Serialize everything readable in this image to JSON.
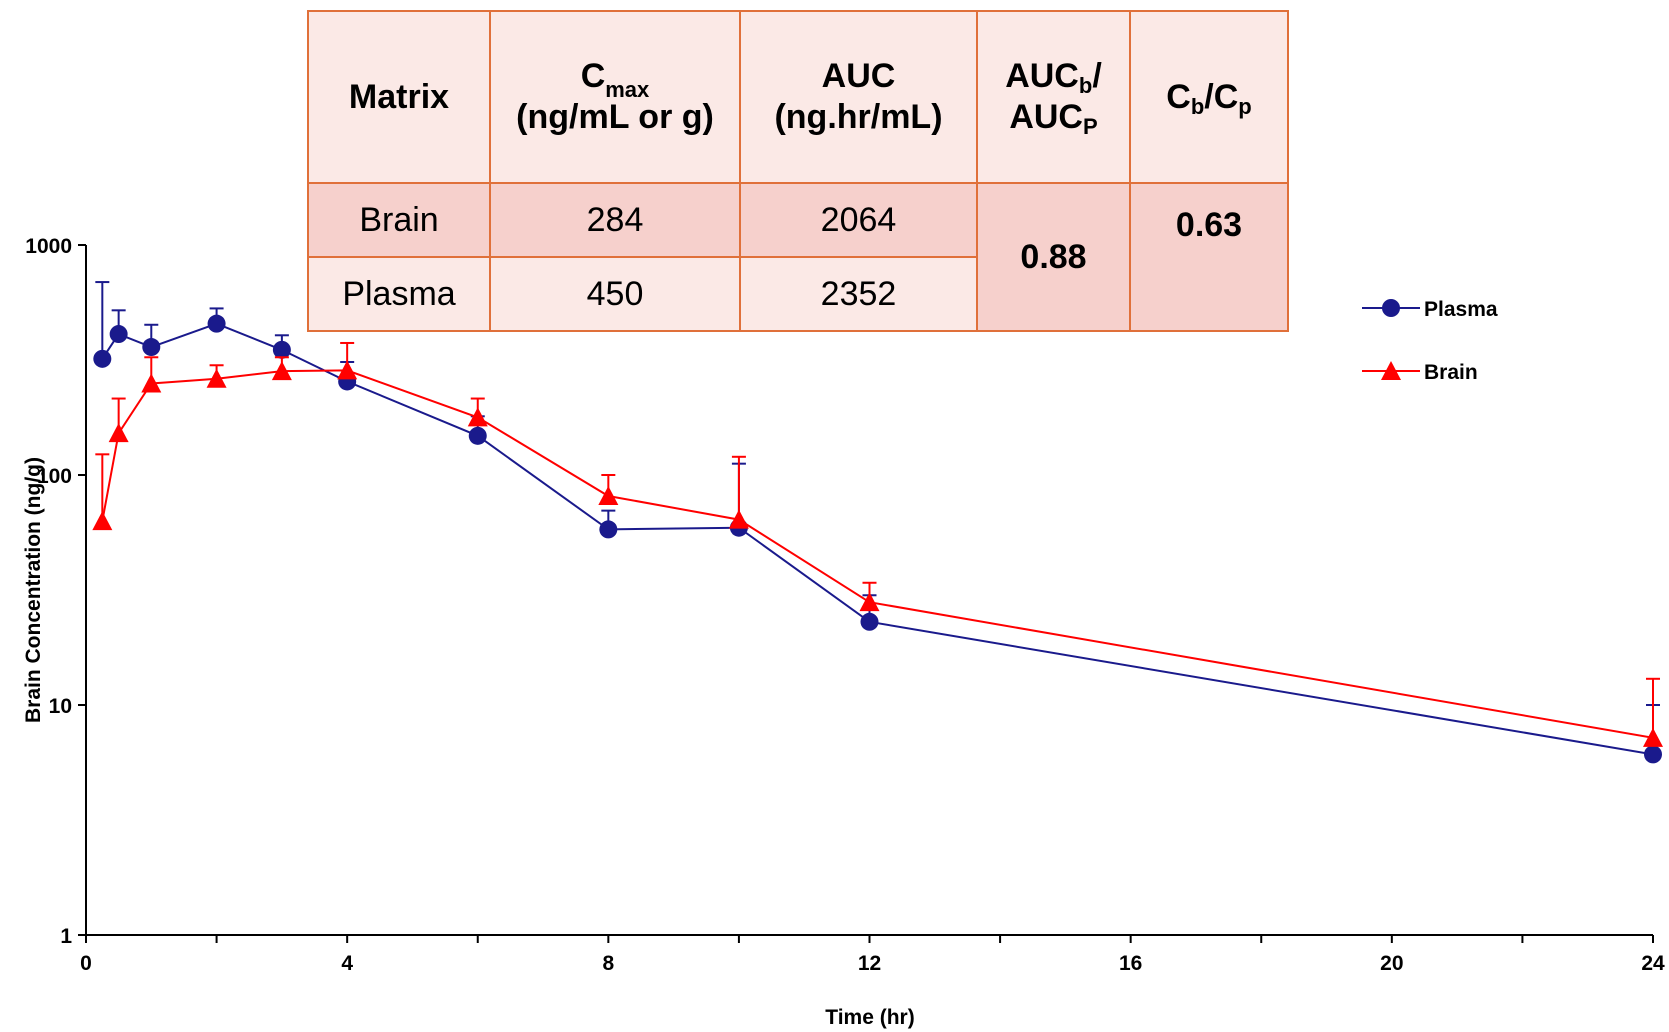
{
  "chart_data": {
    "type": "line",
    "xlabel": "Time (hr)",
    "ylabel": "Brain Concentration (ng/g)",
    "y_scale": "log",
    "xlim": [
      0,
      24
    ],
    "ylim": [
      1,
      1000
    ],
    "x_ticks": [
      "0",
      "4",
      "8",
      "12",
      "16",
      "20",
      "24"
    ],
    "y_ticks": [
      "1",
      "10",
      "100",
      "1000"
    ],
    "legend_position": "right",
    "series": [
      {
        "name": "Plasma",
        "color": "#1a1a8c",
        "marker": "circle",
        "x": [
          0.25,
          0.5,
          1,
          2,
          3,
          4,
          6,
          8,
          10,
          12,
          24
        ],
        "y": [
          320,
          410,
          360,
          455,
          350,
          255,
          148,
          58,
          59,
          23,
          6.1
        ],
        "error_upper": [
          690,
          520,
          450,
          530,
          405,
          310,
          180,
          70,
          112,
          30,
          10
        ]
      },
      {
        "name": "Brain",
        "color": "#ff0000",
        "marker": "triangle",
        "x": [
          0.25,
          0.5,
          1,
          2,
          3,
          4,
          6,
          8,
          10,
          12,
          24
        ],
        "y": [
          63,
          152,
          250,
          262,
          283,
          285,
          178,
          81,
          64,
          28,
          7.2
        ],
        "error_upper": [
          123,
          215,
          325,
          300,
          325,
          375,
          215,
          100,
          120,
          34,
          13
        ]
      }
    ]
  },
  "table": {
    "headers": {
      "matrix": "Matrix",
      "cmax_main": "C",
      "cmax_sub": "max",
      "cmax_rest": "(ng/mL or g)",
      "auc_line1": "AUC",
      "auc_line2": "(ng.hr/mL)",
      "aucb_main": "AUC",
      "aucb_sub": "b",
      "aucb_slash": "/",
      "aucp_main": "AUC",
      "aucp_sub": "P",
      "cb_main": "C",
      "cb_sub": "b",
      "cb_slash": "/",
      "cp_main": "C",
      "cp_sub": "p"
    },
    "rows": [
      {
        "matrix": "Brain",
        "cmax": "284",
        "auc": "2064"
      },
      {
        "matrix": "Plasma",
        "cmax": "450",
        "auc": "2352"
      }
    ],
    "auc_ratio": "0.88",
    "c_ratio": "0.63"
  }
}
